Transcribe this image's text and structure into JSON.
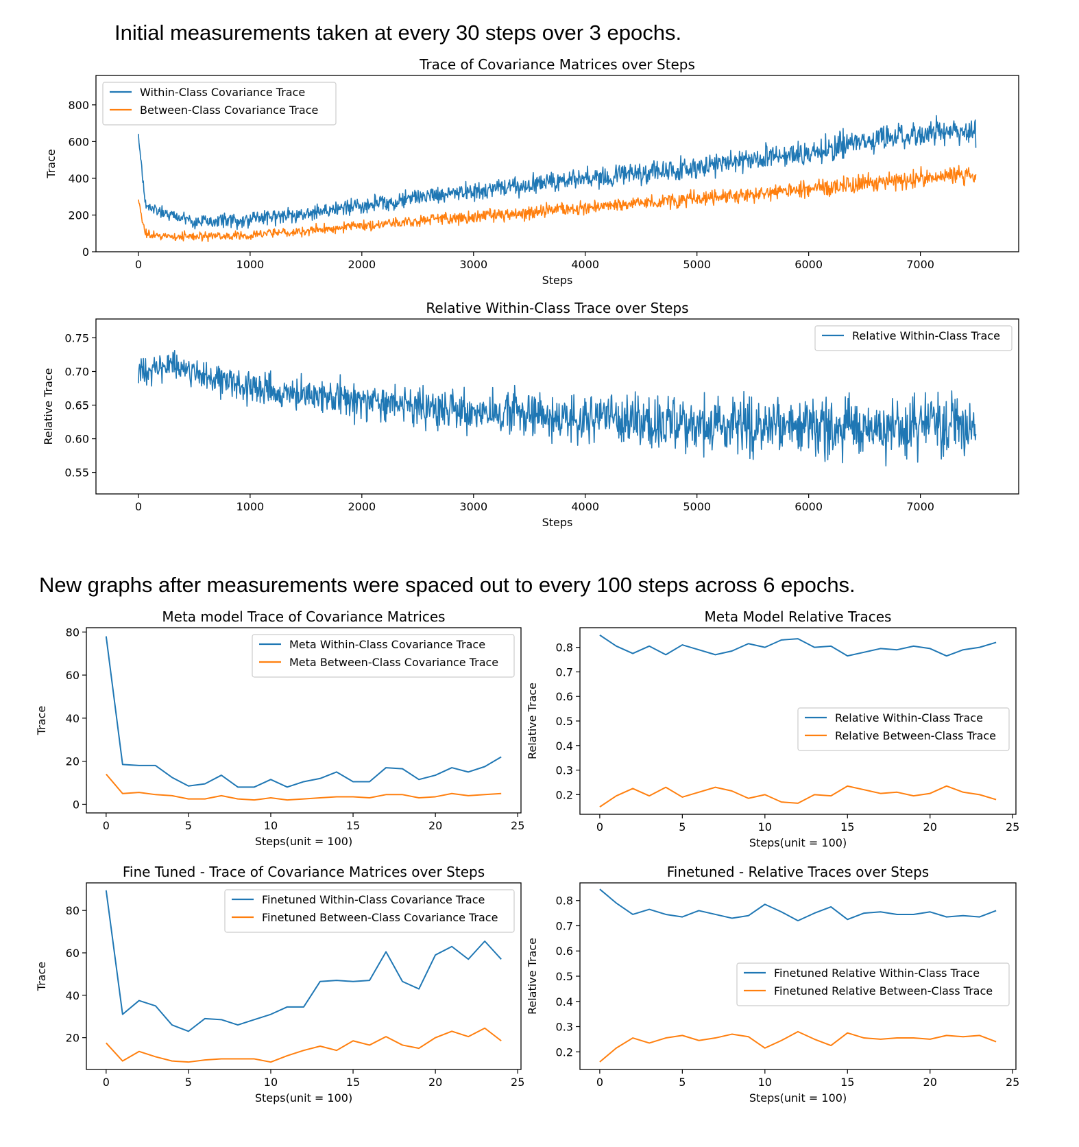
{
  "headings": {
    "top": "Initial measurements taken at every 30 steps over 3 epochs.",
    "bottom": "New graphs after measurements were spaced out to every 100 steps across 6 epochs."
  },
  "colors": {
    "blue": "#1f77b4",
    "orange": "#ff7f0e"
  },
  "chart_data": [
    {
      "id": "trace-cov",
      "type": "line",
      "title": "Trace of Covariance Matrices over Steps",
      "xlabel": "Steps",
      "ylabel": "Trace",
      "xlim": [
        -380,
        7880
      ],
      "ylim": [
        0,
        960
      ],
      "xticks": [
        0,
        1000,
        2000,
        3000,
        4000,
        5000,
        6000,
        7000
      ],
      "yticks": [
        0,
        200,
        400,
        600,
        800
      ],
      "legend": "top-left",
      "noisy": true,
      "sampling": "every 30 steps",
      "series": [
        {
          "name": "Within-Class Covariance Trace",
          "color": "#1f77b4",
          "x": [
            0,
            60,
            200,
            500,
            1000,
            1500,
            2000,
            3000,
            4000,
            5000,
            6000,
            7000,
            7500
          ],
          "y": [
            640,
            260,
            210,
            165,
            175,
            210,
            250,
            330,
            400,
            460,
            540,
            650,
            660
          ],
          "noise": 45
        },
        {
          "name": "Between-Class Covariance Trace",
          "color": "#ff7f0e",
          "x": [
            0,
            60,
            200,
            500,
            1000,
            1500,
            2000,
            3000,
            4000,
            5000,
            6000,
            7000,
            7500
          ],
          "y": [
            300,
            100,
            85,
            80,
            90,
            115,
            140,
            190,
            240,
            290,
            340,
            400,
            420
          ],
          "noise": 30
        }
      ]
    },
    {
      "id": "relative-within",
      "type": "line",
      "title": "Relative Within-Class Trace over Steps",
      "xlabel": "Steps",
      "ylabel": "Relative Trace",
      "xlim": [
        -380,
        7880
      ],
      "ylim": [
        0.518,
        0.778
      ],
      "xticks": [
        0,
        1000,
        2000,
        3000,
        4000,
        5000,
        6000,
        7000
      ],
      "yticks": [
        0.55,
        0.6,
        0.65,
        0.7,
        0.75
      ],
      "legend": "top-right",
      "noisy": true,
      "sampling": "every 30 steps",
      "series": [
        {
          "name": "Relative Within-Class Trace",
          "color": "#1f77b4",
          "x": [
            0,
            300,
            1000,
            2000,
            3000,
            4000,
            5000,
            6000,
            7000,
            7500
          ],
          "y": [
            0.7,
            0.71,
            0.675,
            0.655,
            0.64,
            0.63,
            0.623,
            0.62,
            0.618,
            0.618
          ],
          "noise": 0.028
        }
      ]
    },
    {
      "id": "meta-trace",
      "type": "line",
      "title": "Meta model Trace of Covariance Matrices",
      "xlabel": "Steps(unit = 100)",
      "ylabel": "Trace",
      "xlim": [
        -1.2,
        25.2
      ],
      "ylim": [
        -4,
        82
      ],
      "xticks": [
        0,
        5,
        10,
        15,
        20,
        25
      ],
      "yticks": [
        0,
        20,
        40,
        60,
        80
      ],
      "legend": "top-right",
      "series": [
        {
          "name": "Meta Within-Class Covariance Trace",
          "color": "#1f77b4",
          "x": [
            0,
            1,
            2,
            3,
            4,
            5,
            6,
            7,
            8,
            9,
            10,
            11,
            12,
            13,
            14,
            15,
            16,
            17,
            18,
            19,
            20,
            21,
            22,
            23,
            24
          ],
          "y": [
            78,
            18.5,
            18,
            18,
            12.5,
            8.5,
            9.5,
            13.5,
            8,
            8,
            11.5,
            8,
            10.5,
            12,
            15,
            10.5,
            10.5,
            17,
            16.5,
            11.5,
            13.5,
            17,
            15,
            17.5,
            22
          ]
        },
        {
          "name": "Meta Between-Class Covariance Trace",
          "color": "#ff7f0e",
          "x": [
            0,
            1,
            2,
            3,
            4,
            5,
            6,
            7,
            8,
            9,
            10,
            11,
            12,
            13,
            14,
            15,
            16,
            17,
            18,
            19,
            20,
            21,
            22,
            23,
            24
          ],
          "y": [
            14,
            5,
            5.5,
            4.5,
            4,
            2.5,
            2.5,
            4,
            2.5,
            2,
            3,
            2,
            2.5,
            3,
            3.5,
            3.5,
            3,
            4.5,
            4.5,
            3,
            3.5,
            5,
            4,
            4.5,
            5
          ]
        }
      ]
    },
    {
      "id": "meta-relative",
      "type": "line",
      "title": "Meta Model Relative Traces",
      "xlabel": "Steps(unit = 100)",
      "ylabel": "Relative Trace",
      "xlim": [
        -1.2,
        25.2
      ],
      "ylim": [
        0.12,
        0.88
      ],
      "xticks": [
        0,
        5,
        10,
        15,
        20,
        25
      ],
      "yticks": [
        0.2,
        0.3,
        0.4,
        0.5,
        0.6,
        0.7,
        0.8
      ],
      "legend": "center-right",
      "series": [
        {
          "name": "Relative Within-Class Trace",
          "color": "#1f77b4",
          "x": [
            0,
            1,
            2,
            3,
            4,
            5,
            6,
            7,
            8,
            9,
            10,
            11,
            12,
            13,
            14,
            15,
            16,
            17,
            18,
            19,
            20,
            21,
            22,
            23,
            24
          ],
          "y": [
            0.85,
            0.805,
            0.775,
            0.805,
            0.77,
            0.81,
            0.79,
            0.77,
            0.785,
            0.815,
            0.8,
            0.83,
            0.835,
            0.8,
            0.805,
            0.765,
            0.78,
            0.795,
            0.79,
            0.805,
            0.795,
            0.765,
            0.79,
            0.8,
            0.82
          ]
        },
        {
          "name": "Relative Between-Class Trace",
          "color": "#ff7f0e",
          "x": [
            0,
            1,
            2,
            3,
            4,
            5,
            6,
            7,
            8,
            9,
            10,
            11,
            12,
            13,
            14,
            15,
            16,
            17,
            18,
            19,
            20,
            21,
            22,
            23,
            24
          ],
          "y": [
            0.15,
            0.195,
            0.225,
            0.195,
            0.23,
            0.19,
            0.21,
            0.23,
            0.215,
            0.185,
            0.2,
            0.17,
            0.165,
            0.2,
            0.195,
            0.235,
            0.22,
            0.205,
            0.21,
            0.195,
            0.205,
            0.235,
            0.21,
            0.2,
            0.18
          ]
        }
      ]
    },
    {
      "id": "finetuned-trace",
      "type": "line",
      "title": "Fine Tuned - Trace of Covariance Matrices over Steps",
      "xlabel": "Steps(unit = 100)",
      "ylabel": "Trace",
      "xlim": [
        -1.2,
        25.2
      ],
      "ylim": [
        5,
        93
      ],
      "xticks": [
        0,
        5,
        10,
        15,
        20,
        25
      ],
      "yticks": [
        20,
        40,
        60,
        80
      ],
      "legend": "top-right",
      "series": [
        {
          "name": "Finetuned Within-Class Covariance Trace",
          "color": "#1f77b4",
          "x": [
            0,
            1,
            2,
            3,
            4,
            5,
            6,
            7,
            8,
            9,
            10,
            11,
            12,
            13,
            14,
            15,
            16,
            17,
            18,
            19,
            20,
            21,
            22,
            23,
            24
          ],
          "y": [
            89.5,
            31,
            37.5,
            35,
            26,
            23,
            29,
            28.5,
            26,
            28.5,
            31,
            34.5,
            34.5,
            46.5,
            47,
            46.5,
            47,
            60.5,
            46.5,
            43,
            59,
            63,
            57,
            65.5,
            57
          ]
        },
        {
          "name": "Finetuned Between-Class Covariance Trace",
          "color": "#ff7f0e",
          "x": [
            0,
            1,
            2,
            3,
            4,
            5,
            6,
            7,
            8,
            9,
            10,
            11,
            12,
            13,
            14,
            15,
            16,
            17,
            18,
            19,
            20,
            21,
            22,
            23,
            24
          ],
          "y": [
            17.5,
            9,
            13.5,
            11,
            9,
            8.5,
            9.5,
            10,
            10,
            10,
            8.5,
            11.5,
            14,
            16,
            14,
            18.5,
            16.5,
            20.5,
            16.5,
            15,
            20,
            23,
            20.5,
            24.5,
            18.5
          ]
        }
      ]
    },
    {
      "id": "finetuned-relative",
      "type": "line",
      "title": "Finetuned - Relative Traces over Steps",
      "xlabel": "Steps(unit = 100)",
      "ylabel": "Relative Trace",
      "xlim": [
        -1.2,
        25.2
      ],
      "ylim": [
        0.13,
        0.87
      ],
      "xticks": [
        0,
        5,
        10,
        15,
        20,
        25
      ],
      "yticks": [
        0.2,
        0.3,
        0.4,
        0.5,
        0.6,
        0.7,
        0.8
      ],
      "legend": "center-right",
      "series": [
        {
          "name": "Finetuned Relative Within-Class Trace",
          "color": "#1f77b4",
          "x": [
            0,
            1,
            2,
            3,
            4,
            5,
            6,
            7,
            8,
            9,
            10,
            11,
            12,
            13,
            14,
            15,
            16,
            17,
            18,
            19,
            20,
            21,
            22,
            23,
            24
          ],
          "y": [
            0.845,
            0.79,
            0.745,
            0.765,
            0.745,
            0.735,
            0.76,
            0.745,
            0.73,
            0.74,
            0.785,
            0.755,
            0.72,
            0.75,
            0.775,
            0.725,
            0.75,
            0.755,
            0.745,
            0.745,
            0.755,
            0.735,
            0.74,
            0.735,
            0.76
          ]
        },
        {
          "name": "Finetuned Relative Between-Class Trace",
          "color": "#ff7f0e",
          "x": [
            0,
            1,
            2,
            3,
            4,
            5,
            6,
            7,
            8,
            9,
            10,
            11,
            12,
            13,
            14,
            15,
            16,
            17,
            18,
            19,
            20,
            21,
            22,
            23,
            24
          ],
          "y": [
            0.16,
            0.215,
            0.255,
            0.235,
            0.255,
            0.265,
            0.245,
            0.255,
            0.27,
            0.26,
            0.215,
            0.245,
            0.28,
            0.25,
            0.225,
            0.275,
            0.255,
            0.25,
            0.255,
            0.255,
            0.25,
            0.265,
            0.26,
            0.265,
            0.24
          ]
        }
      ]
    }
  ]
}
